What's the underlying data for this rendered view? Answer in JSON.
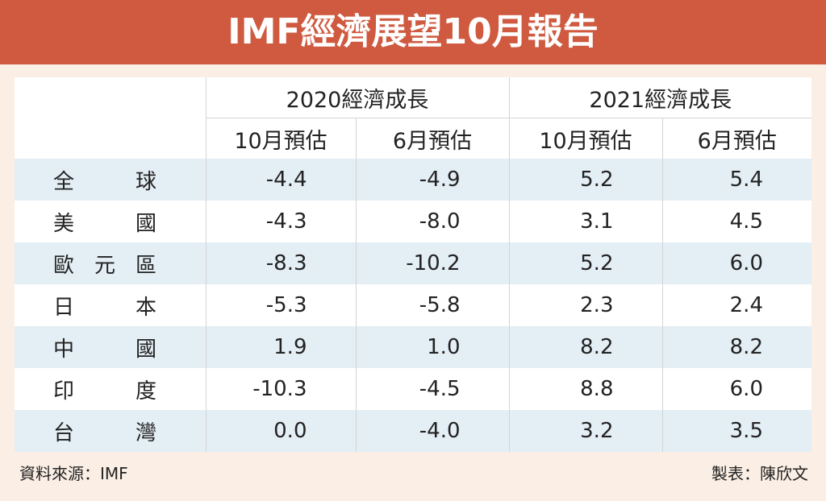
{
  "header": {
    "title": "IMF經濟展望10月報告"
  },
  "table": {
    "groups": [
      "2020經濟成長",
      "2021經濟成長"
    ],
    "columns": [
      "10月預估",
      "6月預估",
      "10月預估",
      "6月預估"
    ],
    "rows": [
      [
        "全球",
        "-4.4",
        "-4.9",
        "5.2",
        "5.4"
      ],
      [
        "美國",
        "-4.3",
        "-8.0",
        "3.1",
        "4.5"
      ],
      [
        "歐元區",
        "-8.3",
        "-10.2",
        "5.2",
        "6.0"
      ],
      [
        "日本",
        "-5.3",
        "-5.8",
        "2.3",
        "2.4"
      ],
      [
        "中國",
        "1.9",
        "1.0",
        "8.2",
        "8.2"
      ],
      [
        "印度",
        "-10.3",
        "-4.5",
        "8.8",
        "6.0"
      ],
      [
        "台灣",
        "0.0",
        "-4.0",
        "3.2",
        "3.5"
      ]
    ]
  },
  "footer": {
    "source": "資料來源：IMF",
    "author": "製表：陳欣文"
  }
}
